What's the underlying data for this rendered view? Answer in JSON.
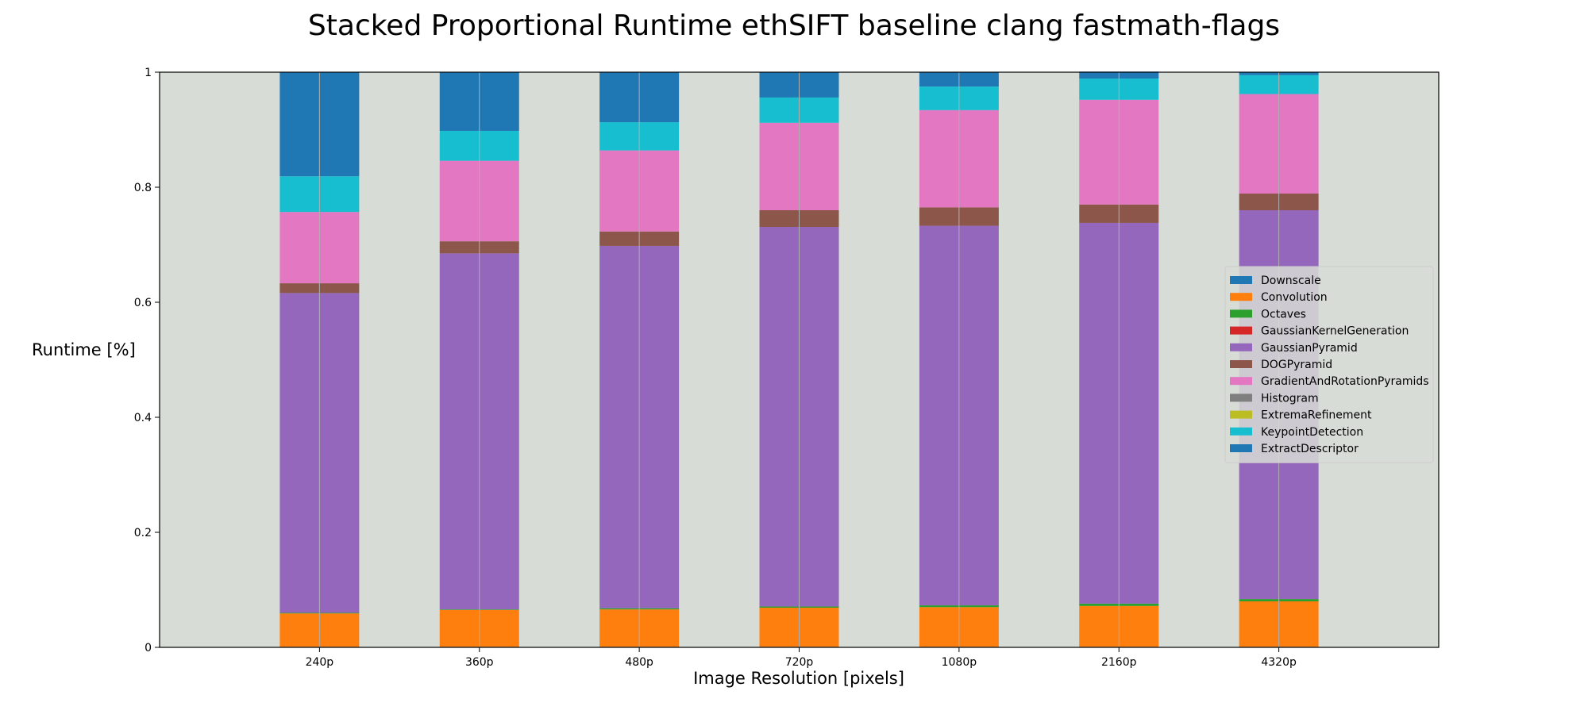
{
  "chart_data": {
    "type": "bar",
    "stacked": true,
    "title": "Stacked Proportional Runtime ethSIFT baseline clang fastmath-flags",
    "xlabel": "Image Resolution [pixels]",
    "ylabel": "Runtime [%]",
    "ylim": [
      0,
      1
    ],
    "yticks": [
      "0",
      "0.2",
      "0.4",
      "0.6",
      "0.8",
      "1"
    ],
    "ytick_values": [
      0,
      0.2,
      0.4,
      0.6,
      0.8,
      1
    ],
    "categories": [
      "240p",
      "360p",
      "480p",
      "720p",
      "1080p",
      "2160p",
      "4320p"
    ],
    "plot_background": "#d8dcd6",
    "grid": "vertical lines at bar centers",
    "legend_position": "center-right",
    "series": [
      {
        "name": "Downscale",
        "color": "#1f77b4",
        "values": [
          0.001,
          0.001,
          0.001,
          0.001,
          0.001,
          0.001,
          0.001
        ]
      },
      {
        "name": "Convolution",
        "color": "#ff7f0e",
        "values": [
          0.058,
          0.064,
          0.065,
          0.068,
          0.069,
          0.071,
          0.079
        ]
      },
      {
        "name": "Octaves",
        "color": "#2ca02c",
        "values": [
          0.001,
          0.001,
          0.002,
          0.002,
          0.003,
          0.004,
          0.004
        ]
      },
      {
        "name": "GaussianKernelGeneration",
        "color": "#d62728",
        "values": [
          0.0,
          0.0,
          0.0,
          0.0,
          0.0,
          0.0,
          0.0
        ]
      },
      {
        "name": "GaussianPyramid",
        "color": "#9467bd",
        "values": [
          0.556,
          0.619,
          0.63,
          0.66,
          0.66,
          0.662,
          0.676
        ]
      },
      {
        "name": "DOGPyramid",
        "color": "#8c564b",
        "values": [
          0.017,
          0.021,
          0.025,
          0.029,
          0.032,
          0.032,
          0.029
        ]
      },
      {
        "name": "GradientAndRotationPyramids",
        "color": "#e377c2",
        "values": [
          0.124,
          0.14,
          0.141,
          0.152,
          0.169,
          0.182,
          0.173
        ]
      },
      {
        "name": "Histogram",
        "color": "#7f7f7f",
        "values": [
          0.0,
          0.0,
          0.0,
          0.0,
          0.0,
          0.0,
          0.0
        ]
      },
      {
        "name": "ExtremaRefinement",
        "color": "#bcbd22",
        "values": [
          0.0,
          0.0,
          0.0,
          0.0,
          0.0,
          0.0,
          0.0
        ]
      },
      {
        "name": "KeypointDetection",
        "color": "#17becf",
        "values": [
          0.062,
          0.052,
          0.049,
          0.044,
          0.041,
          0.037,
          0.033
        ]
      },
      {
        "name": "ExtractDescriptor",
        "color": "#1f77b4",
        "values": [
          0.181,
          0.102,
          0.087,
          0.044,
          0.025,
          0.012,
          0.005
        ]
      }
    ]
  }
}
